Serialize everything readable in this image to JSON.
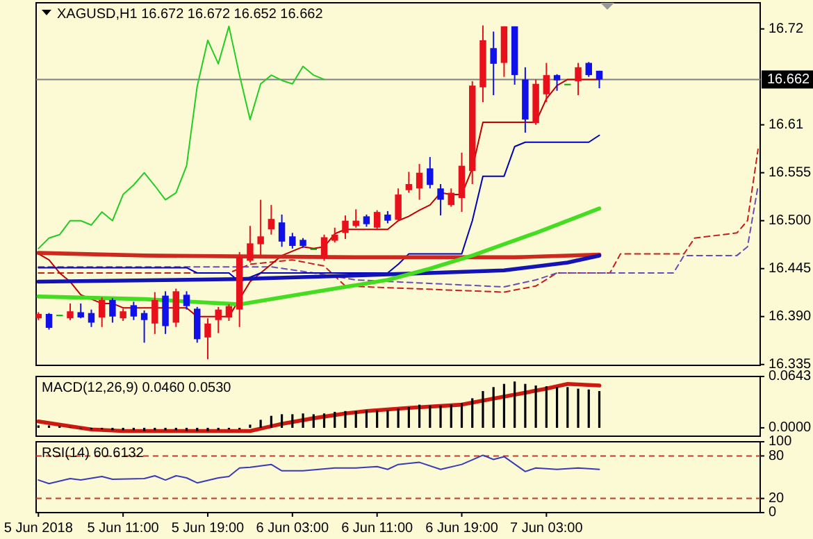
{
  "chart_data": [
    {
      "type": "candlestick",
      "title": "XAGUSD,H1 16.672 16.672 16.652 16.662",
      "x": [
        "2018-06-05T03:00",
        "2018-06-05T04:00",
        "2018-06-05T05:00",
        "2018-06-05T06:00",
        "2018-06-05T07:00",
        "2018-06-05T08:00",
        "2018-06-05T09:00",
        "2018-06-05T10:00",
        "2018-06-05T11:00",
        "2018-06-05T12:00",
        "2018-06-05T13:00",
        "2018-06-05T14:00",
        "2018-06-05T15:00",
        "2018-06-05T16:00",
        "2018-06-05T17:00",
        "2018-06-05T18:00",
        "2018-06-05T19:00",
        "2018-06-05T20:00",
        "2018-06-05T21:00",
        "2018-06-05T22:00",
        "2018-06-05T23:00",
        "2018-06-06T00:00",
        "2018-06-06T01:00",
        "2018-06-06T02:00",
        "2018-06-06T03:00",
        "2018-06-06T04:00",
        "2018-06-06T05:00",
        "2018-06-06T06:00",
        "2018-06-06T07:00",
        "2018-06-06T08:00",
        "2018-06-06T09:00",
        "2018-06-06T10:00",
        "2018-06-06T11:00",
        "2018-06-06T12:00",
        "2018-06-06T13:00",
        "2018-06-06T14:00",
        "2018-06-06T15:00",
        "2018-06-06T16:00",
        "2018-06-06T17:00",
        "2018-06-06T18:00",
        "2018-06-06T19:00",
        "2018-06-06T20:00",
        "2018-06-06T21:00",
        "2018-06-06T22:00",
        "2018-06-06T23:00",
        "2018-06-07T00:00",
        "2018-06-07T01:00",
        "2018-06-07T02:00",
        "2018-06-07T03:00",
        "2018-06-07T04:00",
        "2018-06-07T05:00",
        "2018-06-07T06:00",
        "2018-06-07T07:00",
        "2018-06-07T08:00"
      ],
      "xlim": [
        "2018-06-05T02:47",
        "2018-06-07T23:12"
      ],
      "ylim": [
        16.334,
        16.75
      ],
      "yticks": [
        16.72,
        16.61,
        16.555,
        {
          "value": 16.5,
          "label": "16.500"
        },
        16.445,
        {
          "value": 16.39,
          "label": "16.390"
        },
        16.335
      ],
      "tick_labels": "y",
      "ref_lines": [
        {
          "axis": "y",
          "value": 16.662,
          "label": "16.662",
          "color": "#808080"
        }
      ],
      "series": [
        {
          "ohlc": [
            [
              16.388,
              16.395,
              16.386,
              16.393
            ],
            [
              16.393,
              16.394,
              16.375,
              16.377
            ],
            [
              16.392,
              16.392,
              16.392,
              16.392
            ],
            [
              16.388,
              16.405,
              16.386,
              16.396
            ],
            [
              16.395,
              16.405,
              16.388,
              16.389
            ],
            [
              16.394,
              16.398,
              16.378,
              16.383
            ],
            [
              16.389,
              16.412,
              16.378,
              16.409
            ],
            [
              16.409,
              16.411,
              16.383,
              16.39
            ],
            [
              16.388,
              16.399,
              16.385,
              16.396
            ],
            [
              16.403,
              16.407,
              16.386,
              16.39
            ],
            [
              16.394,
              16.397,
              16.36,
              16.386
            ],
            [
              16.382,
              16.418,
              16.37,
              16.409
            ],
            [
              16.414,
              16.419,
              16.37,
              16.379
            ],
            [
              16.383,
              16.422,
              16.378,
              16.419
            ],
            [
              16.415,
              16.419,
              16.398,
              16.402
            ],
            [
              16.399,
              16.401,
              16.36,
              16.364
            ],
            [
              16.366,
              16.388,
              16.341,
              16.382
            ],
            [
              16.386,
              16.401,
              16.371,
              16.398
            ],
            [
              16.389,
              16.404,
              16.385,
              16.402
            ],
            [
              16.398,
              16.464,
              16.378,
              16.458
            ],
            [
              16.454,
              16.494,
              16.452,
              16.474
            ],
            [
              16.473,
              16.524,
              16.46,
              16.482
            ],
            [
              16.49,
              16.518,
              16.484,
              16.502
            ],
            [
              16.498,
              16.507,
              16.47,
              16.476
            ],
            [
              16.482,
              16.486,
              16.468,
              16.471
            ],
            [
              16.478,
              16.48,
              16.469,
              16.471
            ],
            [
              16.468,
              16.468,
              16.468,
              16.468
            ],
            [
              16.457,
              16.484,
              16.454,
              16.481
            ],
            [
              16.477,
              16.492,
              16.475,
              16.484
            ],
            [
              16.486,
              16.506,
              16.479,
              16.5
            ],
            [
              16.494,
              16.513,
              16.492,
              16.5
            ],
            [
              16.505,
              16.507,
              16.493,
              16.496
            ],
            [
              16.492,
              16.512,
              16.49,
              16.51
            ],
            [
              16.507,
              16.511,
              16.497,
              16.5
            ],
            [
              16.501,
              16.537,
              16.5,
              16.53
            ],
            [
              16.535,
              16.556,
              16.532,
              16.542
            ],
            [
              16.537,
              16.565,
              16.524,
              16.555
            ],
            [
              16.56,
              16.573,
              16.537,
              16.541
            ],
            [
              16.537,
              16.542,
              16.506,
              16.524
            ],
            [
              16.518,
              16.537,
              16.516,
              16.532
            ],
            [
              16.526,
              16.578,
              16.51,
              16.563
            ],
            [
              16.557,
              16.66,
              16.542,
              16.655
            ],
            [
              16.653,
              16.724,
              16.636,
              16.707
            ],
            [
              16.698,
              16.717,
              16.644,
              16.68
            ],
            [
              16.681,
              16.723,
              16.665,
              16.723
            ],
            [
              16.723,
              16.723,
              16.656,
              16.667
            ],
            [
              16.662,
              16.676,
              16.601,
              16.616
            ],
            [
              16.612,
              16.662,
              16.61,
              16.657
            ],
            [
              16.645,
              16.681,
              16.636,
              16.667
            ],
            [
              16.667,
              16.668,
              16.649,
              16.661
            ],
            [
              16.657,
              16.657,
              16.657,
              16.657
            ],
            [
              16.66,
              16.681,
              16.644,
              16.676
            ],
            [
              16.681,
              16.682,
              16.665,
              16.667
            ],
            [
              16.672,
              16.672,
              16.652,
              16.662
            ]
          ],
          "colors": [
            "#e8101a",
            "#1010e8",
            "#00b000",
            "#e8101a",
            "#1010e8",
            "#1010e8",
            "#e8101a",
            "#1010e8",
            "#e8101a",
            "#1010e8",
            "#1010e8",
            "#e8101a",
            "#1010e8",
            "#e8101a",
            "#1010e8",
            "#1010e8",
            "#e8101a",
            "#e8101a",
            "#e8101a",
            "#e8101a",
            "#e8101a",
            "#e8101a",
            "#e8101a",
            "#1010e8",
            "#1010e8",
            "#1010e8",
            "#00b000",
            "#e8101a",
            "#e8101a",
            "#e8101a",
            "#e8101a",
            "#1010e8",
            "#e8101a",
            "#1010e8",
            "#e8101a",
            "#e8101a",
            "#e8101a",
            "#1010e8",
            "#1010e8",
            "#e8101a",
            "#e8101a",
            "#e8101a",
            "#e8101a",
            "#1010e8",
            "#e8101a",
            "#1010e8",
            "#1010e8",
            "#e8101a",
            "#e8101a",
            "#1010e8",
            "#00b000",
            "#e8101a",
            "#1010e8",
            "#1010e8"
          ]
        },
        {
          "type": "line",
          "color": "#c81e1e",
          "line_style": "dashed",
          "x": [
            "2018-06-05T03:00",
            "2018-06-05T21:00",
            "2018-06-05T23:00",
            "2018-06-06T03:00",
            "2018-06-06T06:00",
            "2018-06-06T08:00",
            "2018-06-06T23:00",
            "2018-06-07T02:00",
            "2018-06-07T04:00",
            "2018-06-07T09:00",
            "2018-06-07T10:00",
            "2018-06-07T16:00",
            "2018-06-07T17:00",
            "2018-06-07T21:00",
            "2018-06-07T22:00",
            "2018-06-07T23:00"
          ],
          "values": [
            16.44,
            16.44,
            16.45,
            16.455,
            16.448,
            16.425,
            16.418,
            16.425,
            16.44,
            16.44,
            16.462,
            16.462,
            16.48,
            16.486,
            16.5,
            16.582
          ]
        },
        {
          "type": "line",
          "color": "#6a4ab8",
          "line_style": "dashed",
          "x": [
            "2018-06-05T03:00",
            "2018-06-06T01:00",
            "2018-06-06T05:00",
            "2018-06-06T09:00",
            "2018-06-06T23:00",
            "2018-06-07T02:00",
            "2018-06-07T04:00",
            "2018-06-07T15:00",
            "2018-06-07T16:00",
            "2018-06-07T21:00",
            "2018-06-07T22:00",
            "2018-06-07T23:00"
          ],
          "values": [
            16.447,
            16.447,
            16.44,
            16.432,
            16.424,
            16.432,
            16.44,
            16.44,
            16.46,
            16.46,
            16.47,
            16.54
          ]
        },
        {
          "type": "line",
          "color": "#c00000",
          "values": [
            16.462,
            16.455,
            16.44,
            16.43,
            16.415,
            16.41,
            16.405,
            16.405,
            16.4,
            16.4,
            16.4,
            16.4,
            16.4,
            16.4,
            16.4,
            16.39,
            16.39,
            16.39,
            16.39,
            16.41,
            16.43,
            16.44,
            16.45,
            16.46,
            16.465,
            16.47,
            16.468,
            16.47,
            16.485,
            16.49,
            16.49,
            16.49,
            16.49,
            16.49,
            16.5,
            16.505,
            16.512,
            16.518,
            16.532,
            16.53,
            16.53,
            16.56,
            16.613,
            16.613,
            16.613,
            16.613,
            16.613,
            16.613,
            16.64,
            16.655,
            16.662,
            16.662,
            16.662,
            16.662
          ]
        },
        {
          "type": "line",
          "color": "#0000c0",
          "values": [
            16.446,
            16.446,
            16.446,
            16.446,
            16.446,
            16.446,
            16.446,
            16.446,
            16.446,
            16.446,
            16.446,
            16.446,
            16.446,
            16.446,
            16.446,
            16.44,
            16.44,
            16.44,
            16.44,
            16.43,
            16.435,
            16.44,
            16.44,
            16.44,
            16.44,
            16.44,
            16.44,
            16.44,
            16.44,
            16.44,
            16.44,
            16.44,
            16.44,
            16.44,
            16.45,
            16.462,
            16.462,
            16.462,
            16.462,
            16.462,
            16.462,
            16.5,
            16.551,
            16.551,
            16.551,
            16.585,
            16.59,
            16.59,
            16.59,
            16.59,
            16.59,
            16.59,
            16.59,
            16.598
          ]
        },
        {
          "type": "line",
          "color": "#22cc22",
          "values": [
            16.468,
            16.48,
            16.484,
            16.5,
            16.5,
            16.495,
            16.51,
            16.5,
            16.53,
            16.541,
            16.555,
            16.54,
            16.524,
            16.532,
            16.563,
            16.654,
            16.707,
            16.68,
            16.723,
            16.667,
            16.616,
            16.657,
            16.667,
            16.661,
            16.657,
            16.677,
            16.667,
            16.662,
            null,
            null,
            null,
            null,
            null,
            null,
            null,
            null,
            null,
            null,
            null,
            null,
            null,
            null,
            null,
            null,
            null,
            null,
            null,
            null,
            null,
            null,
            null,
            null,
            null,
            null
          ]
        },
        {
          "type": "line",
          "color": "#cc2a1e",
          "x": [
            "2018-06-05T03:00",
            "2018-06-05T13:00",
            "2018-06-05T22:00",
            "2018-06-06T09:00",
            "2018-06-06T19:00",
            "2018-06-07T00:00",
            "2018-06-07T08:00"
          ],
          "values": [
            16.463,
            16.46,
            16.459,
            16.458,
            16.458,
            16.458,
            16.461
          ]
        },
        {
          "type": "line",
          "color": "#1414b4",
          "x": [
            "2018-06-05T03:00",
            "2018-06-05T22:00",
            "2018-06-06T06:00",
            "2018-06-06T16:00",
            "2018-06-06T23:00",
            "2018-06-07T05:00",
            "2018-06-07T08:00"
          ],
          "values": [
            16.43,
            16.433,
            16.436,
            16.44,
            16.443,
            16.452,
            16.46
          ]
        },
        {
          "type": "line",
          "color": "#44dd22",
          "x": [
            "2018-06-05T03:00",
            "2018-06-05T13:00",
            "2018-06-05T22:00",
            "2018-06-06T04:00",
            "2018-06-06T12:00",
            "2018-06-06T16:00",
            "2018-06-06T20:00",
            "2018-06-07T02:00",
            "2018-06-07T08:00"
          ],
          "values": [
            16.413,
            16.41,
            16.404,
            16.416,
            16.432,
            16.445,
            16.46,
            16.486,
            16.514
          ]
        }
      ]
    },
    {
      "type": "bar",
      "title": "MACD(12,26,9) 0.0460 0.0530",
      "x": [
        "2018-06-05T03:00",
        "2018-06-05T04:00",
        "2018-06-05T05:00",
        "2018-06-05T06:00",
        "2018-06-05T07:00",
        "2018-06-05T08:00",
        "2018-06-05T09:00",
        "2018-06-05T10:00",
        "2018-06-05T11:00",
        "2018-06-05T12:00",
        "2018-06-05T13:00",
        "2018-06-05T14:00",
        "2018-06-05T15:00",
        "2018-06-05T16:00",
        "2018-06-05T17:00",
        "2018-06-05T18:00",
        "2018-06-05T19:00",
        "2018-06-05T20:00",
        "2018-06-05T21:00",
        "2018-06-05T22:00",
        "2018-06-05T23:00",
        "2018-06-06T00:00",
        "2018-06-06T01:00",
        "2018-06-06T02:00",
        "2018-06-06T03:00",
        "2018-06-06T04:00",
        "2018-06-06T05:00",
        "2018-06-06T06:00",
        "2018-06-06T07:00",
        "2018-06-06T08:00",
        "2018-06-06T09:00",
        "2018-06-06T10:00",
        "2018-06-06T11:00",
        "2018-06-06T12:00",
        "2018-06-06T13:00",
        "2018-06-06T14:00",
        "2018-06-06T15:00",
        "2018-06-06T16:00",
        "2018-06-06T17:00",
        "2018-06-06T18:00",
        "2018-06-06T19:00",
        "2018-06-06T20:00",
        "2018-06-06T21:00",
        "2018-06-06T22:00",
        "2018-06-06T23:00",
        "2018-06-07T00:00",
        "2018-06-07T01:00",
        "2018-06-07T02:00",
        "2018-06-07T03:00",
        "2018-06-07T04:00",
        "2018-06-07T05:00",
        "2018-06-07T06:00",
        "2018-06-07T07:00",
        "2018-06-07T08:00"
      ],
      "xlim": [
        "2018-06-05T02:47",
        "2018-06-07T23:12"
      ],
      "ylim": [
        -0.0105,
        0.0643
      ],
      "yticks": [
        0.0643,
        {
          "value": 0,
          "label": "0.0000"
        }
      ],
      "tick_labels": "y",
      "series": [
        {
          "color": "#000000",
          "values": [
            0.003,
            0.003,
            0.002,
            0.001,
            -0.001,
            -0.002,
            -0.002,
            -0.003,
            -0.003,
            -0.003,
            -0.004,
            -0.003,
            -0.003,
            -0.003,
            -0.004,
            -0.004,
            -0.004,
            -0.003,
            -0.002,
            -0.002,
            0.004,
            0.01,
            0.015,
            0.017,
            0.017,
            0.018,
            0.017,
            0.018,
            0.02,
            0.021,
            0.021,
            0.022,
            0.022,
            0.022,
            0.024,
            0.026,
            0.029,
            0.028,
            0.028,
            0.029,
            0.031,
            0.037,
            0.046,
            0.051,
            0.055,
            0.058,
            0.055,
            0.053,
            0.052,
            0.051,
            0.051,
            0.049,
            0.048,
            0.046
          ]
        },
        {
          "type": "line",
          "color": "#cc1a10",
          "x": [
            "2018-06-05T03:00",
            "2018-06-05T07:00",
            "2018-06-05T08:00",
            "2018-06-05T11:00",
            "2018-06-05T23:00",
            "2018-06-06T01:00",
            "2018-06-06T02:00",
            "2018-06-06T05:00",
            "2018-06-06T08:00",
            "2018-06-06T10:00",
            "2018-06-06T14:00",
            "2018-06-06T19:00",
            "2018-06-06T23:00",
            "2018-06-07T03:00",
            "2018-06-07T05:00",
            "2018-06-07T08:00"
          ],
          "values": [
            0.008,
            0.0,
            -0.002,
            -0.004,
            -0.004,
            0.002,
            0.005,
            0.012,
            0.018,
            0.021,
            0.025,
            0.029,
            0.039,
            0.049,
            0.055,
            0.053
          ]
        }
      ]
    },
    {
      "type": "line",
      "title": "RSI(14) 60.6132",
      "xlim": [
        "2018-06-05T02:47",
        "2018-06-07T23:12"
      ],
      "xticks": [
        {
          "value": "2018-06-05T03:00",
          "label": "5 Jun 2018"
        },
        {
          "value": "2018-06-05T11:00",
          "label": "5 Jun 11:00"
        },
        {
          "value": "2018-06-05T19:00",
          "label": "5 Jun 19:00"
        },
        {
          "value": "2018-06-06T03:00",
          "label": "6 Jun 03:00"
        },
        {
          "value": "2018-06-06T11:00",
          "label": "6 Jun 11:00"
        },
        {
          "value": "2018-06-06T19:00",
          "label": "6 Jun 19:00"
        },
        {
          "value": "2018-06-07T03:00",
          "label": "7 Jun 03:00"
        }
      ],
      "ylim": [
        0,
        100
      ],
      "yticks": [
        0,
        20,
        80,
        100
      ],
      "ref_lines": [
        {
          "axis": "y",
          "value": 80,
          "color": "#c0392b",
          "line_style": "dashed"
        },
        {
          "axis": "y",
          "value": 20,
          "color": "#c0392b",
          "line_style": "dashed"
        }
      ],
      "series": [
        {
          "color": "#3a3ab8",
          "x": [
            "2018-06-05T03:00",
            "2018-06-05T04:00",
            "2018-06-05T06:00",
            "2018-06-05T07:00",
            "2018-06-05T09:00",
            "2018-06-05T10:00",
            "2018-06-05T13:00",
            "2018-06-05T14:00",
            "2018-06-05T15:00",
            "2018-06-05T16:00",
            "2018-06-05T17:00",
            "2018-06-05T18:00",
            "2018-06-05T20:00",
            "2018-06-05T21:00",
            "2018-06-05T22:00",
            "2018-06-05T23:00",
            "2018-06-06T01:00",
            "2018-06-06T02:00",
            "2018-06-06T04:00",
            "2018-06-06T07:00",
            "2018-06-06T09:00",
            "2018-06-06T11:00",
            "2018-06-06T12:00",
            "2018-06-06T13:00",
            "2018-06-06T15:00",
            "2018-06-06T17:00",
            "2018-06-06T19:00",
            "2018-06-06T21:00",
            "2018-06-06T22:00",
            "2018-06-06T23:00",
            "2018-06-07T01:00",
            "2018-06-07T02:00",
            "2018-06-07T04:00",
            "2018-06-07T06:00",
            "2018-06-07T08:00"
          ],
          "values": [
            46,
            41,
            48,
            46,
            51,
            47,
            48,
            52,
            46,
            52,
            49,
            42,
            49,
            51,
            63,
            64,
            68,
            59,
            59,
            63,
            63,
            65,
            61,
            68,
            71,
            61,
            68,
            81,
            75,
            79,
            58,
            63,
            61,
            63,
            61
          ]
        }
      ]
    }
  ]
}
